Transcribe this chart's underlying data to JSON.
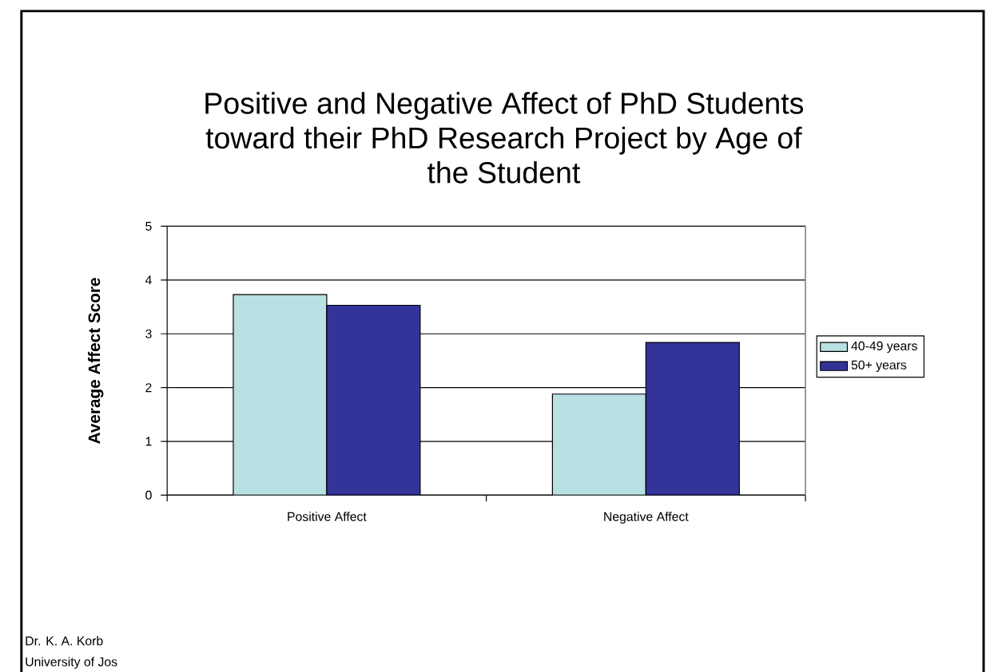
{
  "chart_data": {
    "type": "bar",
    "title": "Positive and Negative Affect of PhD Students toward their PhD Research Project by Age of the Student",
    "ylabel": "Average Affect Score",
    "categories": [
      "Positive Affect",
      "Negative Affect"
    ],
    "series": [
      {
        "name": "40-49 years",
        "color": "#b9e0e3",
        "values": [
          3.73,
          1.88
        ]
      },
      {
        "name": "50+ years",
        "color": "#333399",
        "values": [
          3.53,
          2.84
        ]
      }
    ],
    "ylim": [
      0,
      5
    ],
    "yticks": [
      0,
      1,
      2,
      3,
      4,
      5
    ],
    "grid": "y",
    "legend": "right",
    "annotations": [
      "Dr. K. A. Korb",
      "University of Jos"
    ]
  }
}
